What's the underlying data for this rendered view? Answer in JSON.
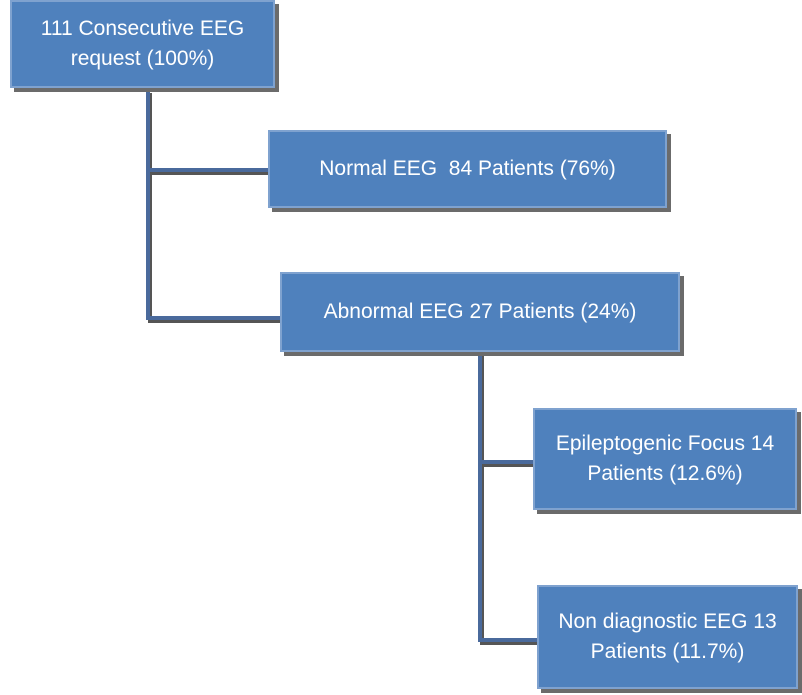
{
  "nodes": [
    {
      "lines": [
        "111 Consecutive EEG",
        "request (100%)"
      ]
    },
    {
      "lines": [
        "Normal EEG  84 Patients (76%)"
      ]
    },
    {
      "lines": [
        "Abnormal EEG 27 Patients (24%)"
      ]
    },
    {
      "lines": [
        "Epileptogenic Focus 14",
        "Patients (12.6%)"
      ]
    },
    {
      "lines": [
        "Non diagnostic EEG 13",
        "Patients (11.7%)"
      ]
    }
  ]
}
